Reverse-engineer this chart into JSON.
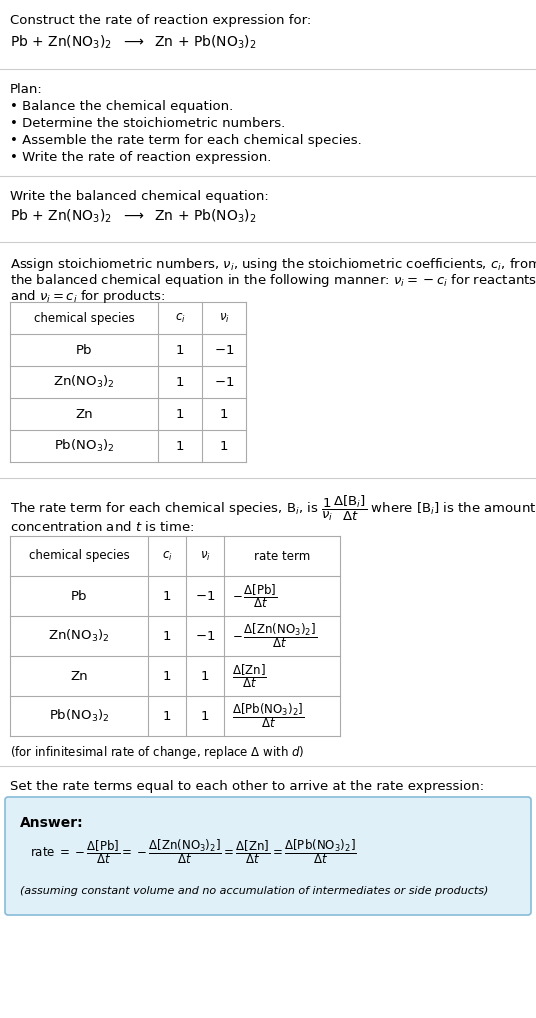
{
  "title_line1": "Construct the rate of reaction expression for:",
  "title_line2": "Pb + Zn(NO$_3$)$_2$  $\\longrightarrow$  Zn + Pb(NO$_3$)$_2$",
  "plan_header": "Plan:",
  "plan_bullets": [
    "• Balance the chemical equation.",
    "• Determine the stoichiometric numbers.",
    "• Assemble the rate term for each chemical species.",
    "• Write the rate of reaction expression."
  ],
  "balanced_header": "Write the balanced chemical equation:",
  "balanced_eq": "Pb + Zn(NO$_3$)$_2$  $\\longrightarrow$  Zn + Pb(NO$_3$)$_2$",
  "stoich_intro1": "Assign stoichiometric numbers, $\\nu_i$, using the stoichiometric coefficients, $c_i$, from",
  "stoich_intro2": "the balanced chemical equation in the following manner: $\\nu_i = -c_i$ for reactants",
  "stoich_intro3": "and $\\nu_i = c_i$ for products:",
  "table1_headers": [
    "chemical species",
    "$c_i$",
    "$\\nu_i$"
  ],
  "table1_rows": [
    [
      "Pb",
      "1",
      "$-1$"
    ],
    [
      "Zn(NO$_3$)$_2$",
      "1",
      "$-1$"
    ],
    [
      "Zn",
      "1",
      "1"
    ],
    [
      "Pb(NO$_3$)$_2$",
      "1",
      "1"
    ]
  ],
  "rate_intro1": "The rate term for each chemical species, B$_i$, is $\\dfrac{1}{\\nu_i}\\dfrac{\\Delta[\\mathrm{B}_i]}{\\Delta t}$ where [B$_i$] is the amount",
  "rate_intro2": "concentration and $t$ is time:",
  "table2_headers": [
    "chemical species",
    "$c_i$",
    "$\\nu_i$",
    "rate term"
  ],
  "table2_row1": [
    "Pb",
    "1",
    "$-1$",
    "$-\\,\\dfrac{\\Delta[\\mathrm{Pb}]}{\\Delta t}$"
  ],
  "table2_row2": [
    "Zn(NO$_3$)$_2$",
    "1",
    "$-1$",
    "$-\\,\\dfrac{\\Delta[\\mathrm{Zn(NO_3)_2}]}{\\Delta t}$"
  ],
  "table2_row3": [
    "Zn",
    "1",
    "1",
    "$\\dfrac{\\Delta[\\mathrm{Zn}]}{\\Delta t}$"
  ],
  "table2_row4": [
    "Pb(NO$_3$)$_2$",
    "1",
    "1",
    "$\\dfrac{\\Delta[\\mathrm{Pb(NO_3)_2}]}{\\Delta t}$"
  ],
  "infinitesimal_note": "(for infinitesimal rate of change, replace $\\Delta$ with $d$)",
  "set_equal_text": "Set the rate terms equal to each other to arrive at the rate expression:",
  "answer_label": "Answer:",
  "answer_eq": "rate $= -\\dfrac{\\Delta[\\mathrm{Pb}]}{\\Delta t} = -\\dfrac{\\Delta[\\mathrm{Zn(NO_3)_2}]}{\\Delta t} = \\dfrac{\\Delta[\\mathrm{Zn}]}{\\Delta t} = \\dfrac{\\Delta[\\mathrm{Pb(NO_3)_2}]}{\\Delta t}$",
  "assuming_note": "(assuming constant volume and no accumulation of intermediates or side products)",
  "bg_color": "#ffffff",
  "answer_box_color": "#dff0f8",
  "answer_box_border": "#88bbd8",
  "table_border_color": "#aaaaaa",
  "rule_color": "#cccccc",
  "text_color": "#000000"
}
